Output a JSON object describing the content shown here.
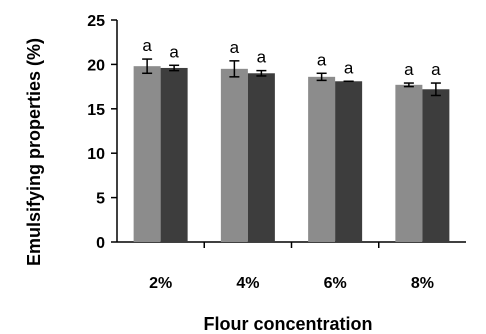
{
  "chart_data": {
    "type": "bar",
    "xlabel": "Flour concentration",
    "ylabel": "Emulsifying properties (%)",
    "ylim": [
      0,
      25
    ],
    "yticks": [
      "0",
      "5",
      "10",
      "15",
      "20",
      "25"
    ],
    "grid": false,
    "categories": [
      "2%",
      "4%",
      "6%",
      "8%"
    ],
    "series": [
      {
        "color": "#8c8c8c",
        "values": [
          19.8,
          19.5,
          18.6,
          17.7
        ],
        "errors": [
          0.8,
          0.9,
          0.4,
          0.2
        ],
        "labels": [
          "a",
          "a",
          "a",
          "a"
        ]
      },
      {
        "color": "#3d3d3d",
        "values": [
          19.6,
          19.0,
          18.1,
          17.2
        ],
        "errors": [
          0.3,
          0.3,
          0.0,
          0.7
        ],
        "labels": [
          "a",
          "a",
          "a",
          "a"
        ]
      }
    ]
  }
}
